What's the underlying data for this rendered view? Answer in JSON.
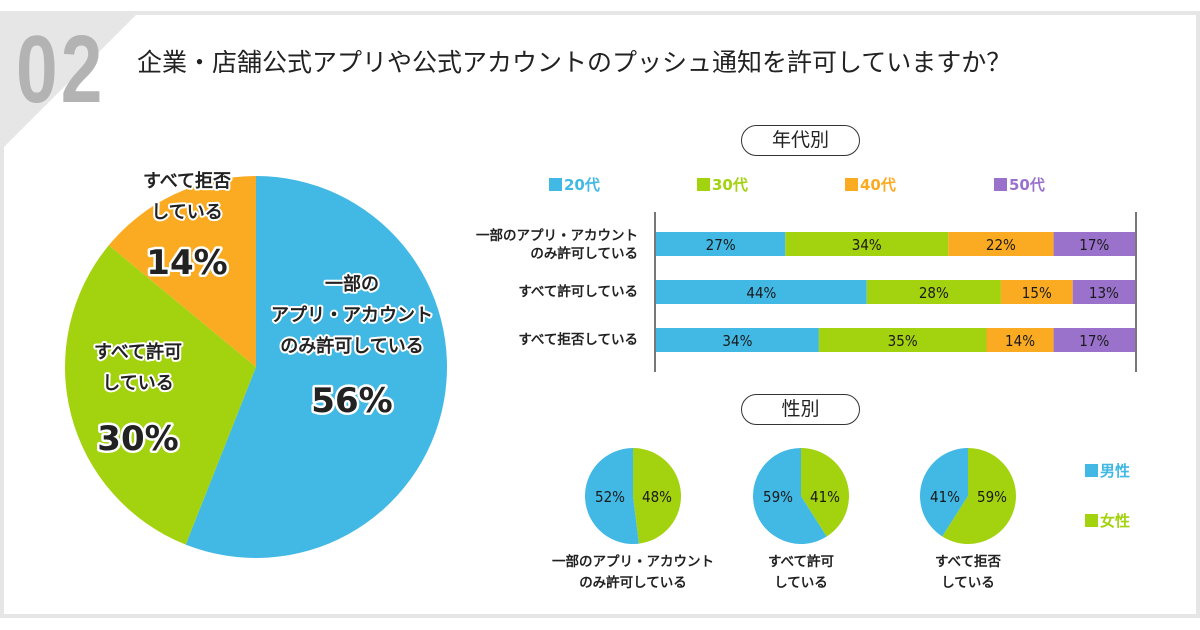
{
  "header": {
    "question_number": "02",
    "question": "企業・店舗公式アプリや公式アカウントのプッシュ通知を許可していますか？"
  },
  "colors": {
    "blue": "#42b8e4",
    "green": "#a3d20f",
    "orange": "#fbab22",
    "purple": "#9a72cc",
    "male": "#42b8e4",
    "female": "#a3d20f"
  },
  "chart_data": [
    {
      "type": "pie",
      "title": "企業・店舗公式アプリや公式アカウントのプッシュ通知を許可していますか？",
      "slices": [
        {
          "label_lines": [
            "一部の",
            "アプリ・アカウント",
            "のみ許可している"
          ],
          "label": "一部のアプリ・アカウントのみ許可している",
          "value": 56,
          "value_label": "56%",
          "color": "#42b8e4"
        },
        {
          "label_lines": [
            "すべて許可",
            "している"
          ],
          "label": "すべて許可している",
          "value": 30,
          "value_label": "30%",
          "color": "#a3d20f"
        },
        {
          "label_lines": [
            "すべて拒否",
            "している"
          ],
          "label": "すべて拒否している",
          "value": 14,
          "value_label": "14%",
          "color": "#fbab22"
        }
      ]
    },
    {
      "type": "bar",
      "orientation": "horizontal",
      "stacked": true,
      "title": "年代別",
      "legend_position": "top",
      "categories": [
        "一部のアプリ・アカウントのみ許可している",
        "すべて許可している",
        "すべて拒否している"
      ],
      "category_label_lines": [
        [
          "一部のアプリ・アカウント",
          "のみ許可している"
        ],
        [
          "すべて許可している"
        ],
        [
          "すべて拒否している"
        ]
      ],
      "series": [
        {
          "name": "20代",
          "color": "#42b8e4",
          "values": [
            27,
            44,
            34
          ]
        },
        {
          "name": "30代",
          "color": "#a3d20f",
          "values": [
            34,
            28,
            35
          ]
        },
        {
          "name": "40代",
          "color": "#fbab22",
          "values": [
            22,
            15,
            14
          ]
        },
        {
          "name": "50代",
          "color": "#9a72cc",
          "values": [
            17,
            13,
            17
          ]
        }
      ],
      "xlim": [
        0,
        100
      ],
      "unit": "%"
    },
    {
      "type": "pie",
      "title": "性別",
      "legend_position": "right",
      "legend": [
        {
          "name": "男性",
          "color": "#42b8e4"
        },
        {
          "name": "女性",
          "color": "#a3d20f"
        }
      ],
      "pies": [
        {
          "label_lines": [
            "一部のアプリ・アカウント",
            "のみ許可している"
          ],
          "male": 52,
          "female": 48
        },
        {
          "label_lines": [
            "すべて許可",
            "している"
          ],
          "male": 59,
          "female": 41
        },
        {
          "label_lines": [
            "すべて拒否",
            "している"
          ],
          "male": 41,
          "female": 59
        }
      ]
    }
  ]
}
